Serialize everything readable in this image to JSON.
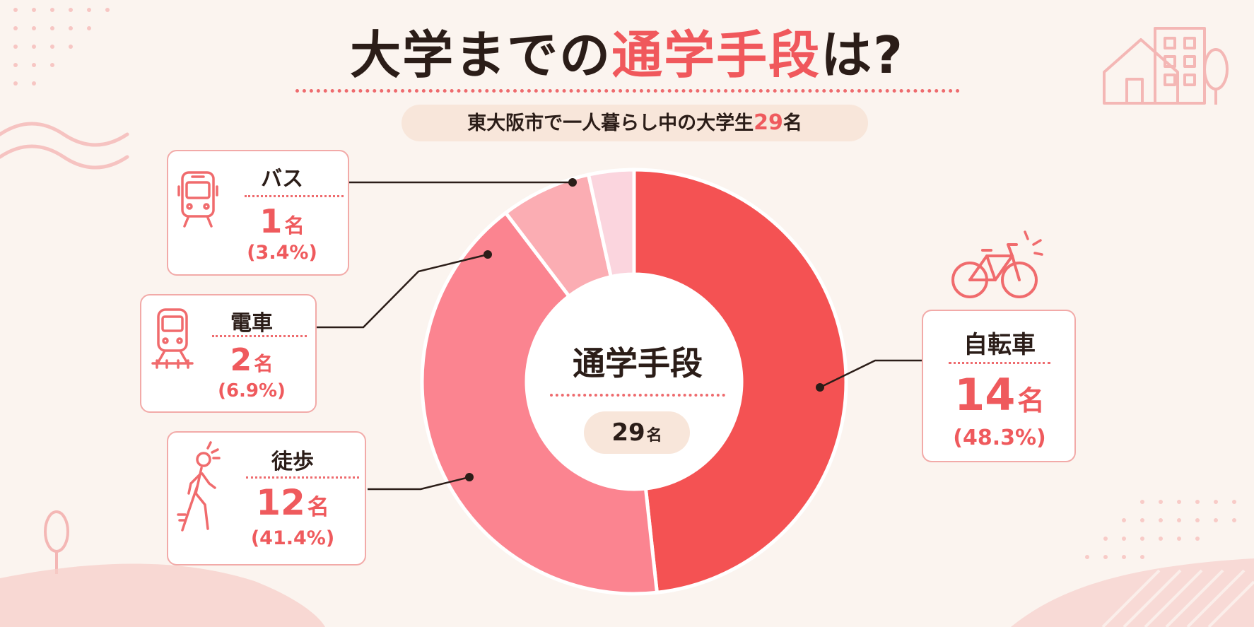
{
  "title": {
    "part1": "大学までの",
    "part2": "通学手段",
    "part3": "は?"
  },
  "subtitle": {
    "text": "東大阪市で一人暮らし中の大学生",
    "number": "29",
    "unit": "名"
  },
  "center": {
    "title": "通学手段",
    "total": "29",
    "unit": "名"
  },
  "colors": {
    "accent": "#ef5a5d",
    "bicycle": "#f45253",
    "walk": "#fb8490",
    "train": "#fbadb3",
    "bus": "#fbd5de"
  },
  "chart_data": {
    "type": "pie",
    "title": "大学までの通学手段は?",
    "total": 29,
    "unit": "名",
    "slices": [
      {
        "label": "自転車",
        "value": 14,
        "display": "14",
        "percent": "(48.3%)",
        "icon": "bicycle-icon"
      },
      {
        "label": "徒歩",
        "value": 12,
        "display": "12",
        "percent": "(41.4%)",
        "icon": "walking-person-icon"
      },
      {
        "label": "電車",
        "value": 2,
        "display": "2",
        "percent": "(6.9%)",
        "icon": "train-icon"
      },
      {
        "label": "バス",
        "value": 1,
        "display": "1",
        "percent": "(3.4%)",
        "icon": "bus-icon"
      }
    ]
  }
}
